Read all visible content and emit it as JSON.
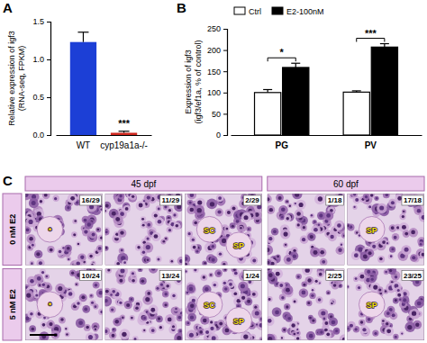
{
  "chart_data": [
    {
      "type": "bar",
      "annotations": [
        {
          "text": "A"
        },
        {
          "text": "***",
          "category": "cyp19a1a-/-"
        }
      ],
      "y_label": "Relative expression of igf3 (RNA-seq, FPKM)",
      "categories": [
        "WT",
        "cyp19a1a-/-"
      ],
      "values": [
        1.23,
        0.03
      ],
      "errors": [
        0.13,
        0.02
      ],
      "colors": [
        "#1c3fd6",
        "#d0281f"
      ],
      "ylim": [
        0,
        1.5
      ],
      "yticks": [
        {
          "value": 0,
          "label": "0.0"
        },
        {
          "value": 0.5,
          "label": "0.5"
        },
        {
          "value": 1,
          "label": "1.0"
        },
        {
          "value": 1.5,
          "label": "1.5"
        }
      ]
    },
    {
      "type": "bar",
      "annotations": [
        {
          "text": "B"
        },
        {
          "text": "*",
          "category": "PG"
        },
        {
          "text": "***",
          "category": "PV"
        }
      ],
      "y_label": "Expression of igf3 (igf3/ef1a, % of control)",
      "categories": [
        "PG",
        "PV"
      ],
      "series": [
        {
          "name": "Ctrl",
          "color": "#ffffff",
          "values": [
            100,
            101
          ],
          "errors": [
            7,
            3
          ]
        },
        {
          "name": "E2-100nM",
          "color": "#000000",
          "values": [
            159,
            207
          ],
          "errors": [
            10,
            8
          ]
        }
      ],
      "ylim": [
        0,
        250
      ],
      "yticks": [
        0,
        50,
        100,
        150,
        200,
        250
      ],
      "legend": "upper left"
    }
  ],
  "panel_c": {
    "label": "C",
    "groups": [
      {
        "title": "45 dpf"
      },
      {
        "title": "60 dpf"
      }
    ],
    "rows": [
      {
        "label": "0 nM E2",
        "cells": [
          [
            {
              "count": "16/29",
              "marks": [
                "*"
              ]
            },
            {
              "count": "11/29"
            },
            {
              "count": "2/29",
              "marks": [
                "SC",
                "SP"
              ]
            }
          ],
          [
            {
              "count": "1/18"
            },
            {
              "count": "17/18",
              "marks": [
                "SP"
              ]
            }
          ]
        ]
      },
      {
        "label": "5 nM E2",
        "cells": [
          [
            {
              "count": "10/24",
              "marks": [
                "*"
              ]
            },
            {
              "count": "13/24"
            },
            {
              "count": "1/24",
              "marks": [
                "SC",
                "SP"
              ]
            }
          ],
          [
            {
              "count": "2/25"
            },
            {
              "count": "23/25",
              "marks": [
                "SP"
              ]
            }
          ]
        ]
      }
    ]
  }
}
